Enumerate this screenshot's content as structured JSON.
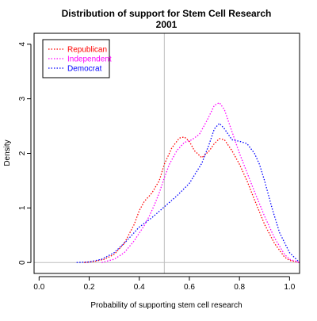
{
  "chart_data": {
    "type": "line",
    "title": "Distribution of support for Stem Cell Research",
    "subtitle": "2001",
    "xlabel": "Probability of supporting stem cell research",
    "ylabel": "Density",
    "xlim": [
      -0.02,
      1.04
    ],
    "ylim": [
      -0.2,
      4.2
    ],
    "xticks": [
      0.0,
      0.2,
      0.4,
      0.6,
      0.8,
      1.0
    ],
    "xtick_labels": [
      "0.0",
      "0.2",
      "0.4",
      "0.6",
      "0.8",
      "1.0"
    ],
    "yticks": [
      0,
      1,
      2,
      3,
      4
    ],
    "ytick_labels": [
      "0",
      "1",
      "2",
      "3",
      "4"
    ],
    "reference_lines": {
      "vertical": 0.5,
      "horizontal": 0
    },
    "grid": false,
    "legend_position": "top-left",
    "series": [
      {
        "name": "Republican",
        "color": "#ff0000",
        "x": [
          0.18,
          0.22,
          0.26,
          0.3,
          0.34,
          0.38,
          0.4,
          0.42,
          0.45,
          0.48,
          0.5,
          0.53,
          0.56,
          0.58,
          0.6,
          0.62,
          0.65,
          0.68,
          0.7,
          0.72,
          0.74,
          0.77,
          0.8,
          0.83,
          0.86,
          0.9,
          0.94,
          0.98,
          1.0,
          1.04
        ],
        "y": [
          0.0,
          0.02,
          0.06,
          0.15,
          0.35,
          0.7,
          0.95,
          1.12,
          1.27,
          1.5,
          1.8,
          2.1,
          2.28,
          2.3,
          2.22,
          2.05,
          1.92,
          2.05,
          2.18,
          2.27,
          2.25,
          2.05,
          1.8,
          1.5,
          1.15,
          0.7,
          0.35,
          0.1,
          0.04,
          0.0
        ]
      },
      {
        "name": "Independent",
        "color": "#ff00ff",
        "x": [
          0.25,
          0.3,
          0.34,
          0.38,
          0.42,
          0.44,
          0.46,
          0.48,
          0.5,
          0.52,
          0.55,
          0.58,
          0.61,
          0.64,
          0.67,
          0.7,
          0.72,
          0.74,
          0.77,
          0.8,
          0.83,
          0.86,
          0.9,
          0.94,
          0.98,
          1.0,
          1.04
        ],
        "y": [
          0.0,
          0.06,
          0.18,
          0.4,
          0.68,
          0.85,
          1.05,
          1.28,
          1.55,
          1.8,
          2.05,
          2.2,
          2.25,
          2.35,
          2.6,
          2.88,
          2.93,
          2.8,
          2.4,
          2.0,
          1.65,
          1.3,
          0.85,
          0.45,
          0.15,
          0.06,
          0.0
        ]
      },
      {
        "name": "Democrat",
        "color": "#0000ff",
        "x": [
          0.15,
          0.2,
          0.25,
          0.3,
          0.35,
          0.4,
          0.45,
          0.5,
          0.55,
          0.6,
          0.65,
          0.68,
          0.7,
          0.72,
          0.74,
          0.77,
          0.8,
          0.83,
          0.86,
          0.88,
          0.9,
          0.93,
          0.96,
          1.0,
          1.04
        ],
        "y": [
          0.0,
          0.01,
          0.06,
          0.18,
          0.4,
          0.65,
          0.82,
          1.02,
          1.22,
          1.45,
          1.82,
          2.18,
          2.45,
          2.55,
          2.45,
          2.25,
          2.22,
          2.18,
          2.0,
          1.8,
          1.5,
          1.0,
          0.55,
          0.18,
          0.0
        ]
      }
    ]
  }
}
